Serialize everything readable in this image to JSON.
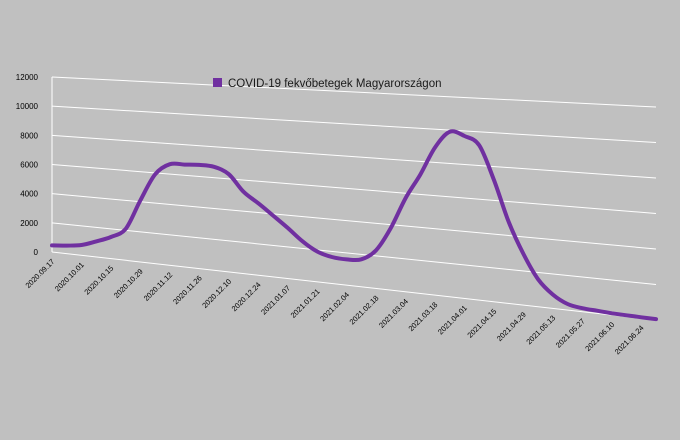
{
  "chart_data": {
    "type": "line",
    "title": "",
    "xlabel": "",
    "ylabel": "",
    "legend_position": "top",
    "grid": true,
    "ylim": [
      0,
      12000
    ],
    "y_ticks": [
      0,
      2000,
      4000,
      6000,
      8000,
      10000,
      12000
    ],
    "x_tick_labels": [
      "2020.09.17",
      "2020.10.01",
      "2020.10.15",
      "2020.10.29",
      "2020.11.12",
      "2020.11.26",
      "2020.12.10",
      "2020.12.24",
      "2021.01.07",
      "2021.01.21",
      "2021.02.04",
      "2021.02.18",
      "2021.03.04",
      "2021.03.18",
      "2021.04.01",
      "2021.04.15",
      "2021.04.29",
      "2021.05.13",
      "2021.05.27",
      "2021.06.10",
      "2021.06.24"
    ],
    "series": [
      {
        "name": "COVID-19 fekvőbetegek Magyarországon",
        "color": "#7030a0",
        "x": [
          "2020.09.17",
          "2020.09.24",
          "2020.10.01",
          "2020.10.08",
          "2020.10.15",
          "2020.10.22",
          "2020.10.29",
          "2020.11.05",
          "2020.11.12",
          "2020.11.19",
          "2020.11.26",
          "2020.12.03",
          "2020.12.10",
          "2020.12.17",
          "2020.12.24",
          "2020.12.31",
          "2021.01.07",
          "2021.01.14",
          "2021.01.21",
          "2021.01.28",
          "2021.02.04",
          "2021.02.11",
          "2021.02.18",
          "2021.02.25",
          "2021.03.04",
          "2021.03.11",
          "2021.03.18",
          "2021.03.25",
          "2021.04.01",
          "2021.04.08",
          "2021.04.15",
          "2021.04.22",
          "2021.04.29",
          "2021.05.06",
          "2021.05.13",
          "2021.05.20",
          "2021.05.27",
          "2021.06.03",
          "2021.06.10",
          "2021.06.17",
          "2021.06.24",
          "2021.07.01"
        ],
        "values": [
          450,
          550,
          700,
          1050,
          1450,
          2100,
          4100,
          5900,
          6650,
          6700,
          6750,
          6700,
          6300,
          5250,
          4600,
          3900,
          3200,
          2450,
          1900,
          1650,
          1600,
          1700,
          2350,
          3800,
          5700,
          7200,
          8900,
          9900,
          9700,
          9200,
          7200,
          4800,
          3000,
          1600,
          800,
          350,
          200,
          150,
          100,
          80,
          60,
          50
        ]
      }
    ]
  }
}
